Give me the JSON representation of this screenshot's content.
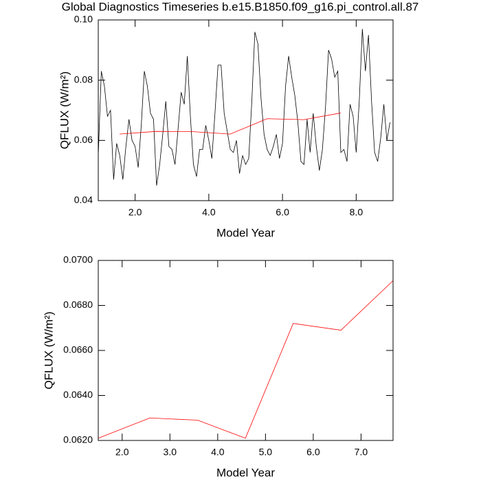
{
  "chart_data": [
    {
      "type": "line",
      "title": "Global Diagnostics Timeseries b.e15.B1850.f09_g16.pi_control.all.87",
      "x_label": "Model Year",
      "y_label": "QFLUX (W/m²)",
      "xlim": [
        1.0,
        9.0
      ],
      "xticks": [
        {
          "value": 2,
          "label": "2.0"
        },
        {
          "value": 4,
          "label": "4.0"
        },
        {
          "value": 6,
          "label": "6.0"
        },
        {
          "value": 8,
          "label": "8.0"
        }
      ],
      "ylim": [
        0.04,
        0.1
      ],
      "yticks": [
        0.04,
        0.06,
        0.08,
        {
          "value": 0.1,
          "label": "0.10"
        }
      ],
      "series": [
        {
          "color": "#000000",
          "x": [
            1.0,
            1.083,
            1.167,
            1.25,
            1.333,
            1.417,
            1.5,
            1.583,
            1.667,
            1.75,
            1.833,
            1.917,
            2.0,
            2.083,
            2.167,
            2.25,
            2.333,
            2.417,
            2.5,
            2.583,
            2.667,
            2.75,
            2.833,
            2.917,
            3.0,
            3.083,
            3.167,
            3.25,
            3.333,
            3.417,
            3.5,
            3.583,
            3.667,
            3.75,
            3.833,
            3.917,
            4.0,
            4.083,
            4.167,
            4.25,
            4.333,
            4.417,
            4.5,
            4.583,
            4.667,
            4.75,
            4.833,
            4.917,
            5.0,
            5.083,
            5.167,
            5.25,
            5.333,
            5.417,
            5.5,
            5.583,
            5.667,
            5.75,
            5.833,
            5.917,
            6.0,
            6.083,
            6.167,
            6.25,
            6.333,
            6.417,
            6.5,
            6.583,
            6.667,
            6.75,
            6.833,
            6.917,
            7.0,
            7.083,
            7.167,
            7.25,
            7.333,
            7.417,
            7.5,
            7.583,
            7.667,
            7.75,
            7.833,
            7.917,
            8.0,
            8.083,
            8.167,
            8.25,
            8.333,
            8.417,
            8.5,
            8.583,
            8.667,
            8.75,
            8.833,
            8.917
          ],
          "values": [
            0.055,
            0.083,
            0.078,
            0.068,
            0.07,
            0.047,
            0.059,
            0.055,
            0.047,
            0.058,
            0.067,
            0.06,
            0.058,
            0.051,
            0.065,
            0.083,
            0.078,
            0.069,
            0.067,
            0.045,
            0.052,
            0.062,
            0.073,
            0.058,
            0.057,
            0.052,
            0.064,
            0.076,
            0.072,
            0.088,
            0.068,
            0.052,
            0.048,
            0.057,
            0.057,
            0.065,
            0.06,
            0.054,
            0.069,
            0.085,
            0.085,
            0.069,
            0.063,
            0.057,
            0.056,
            0.06,
            0.049,
            0.055,
            0.052,
            0.054,
            0.073,
            0.096,
            0.092,
            0.074,
            0.062,
            0.057,
            0.055,
            0.058,
            0.062,
            0.054,
            0.059,
            0.078,
            0.088,
            0.081,
            0.075,
            0.066,
            0.053,
            0.052,
            0.067,
            0.056,
            0.069,
            0.058,
            0.05,
            0.057,
            0.071,
            0.09,
            0.087,
            0.081,
            0.083,
            0.056,
            0.057,
            0.053,
            0.072,
            0.068,
            0.056,
            0.073,
            0.097,
            0.083,
            0.095,
            0.073,
            0.056,
            0.053,
            0.061,
            0.072,
            0.06,
            0.066
          ]
        },
        {
          "color": "#ff0000",
          "x": [
            1.58,
            2.58,
            3.58,
            4.58,
            5.58,
            6.58,
            7.58
          ],
          "values": [
            0.0621,
            0.063,
            0.0629,
            0.0621,
            0.0672,
            0.0669,
            0.0691
          ]
        }
      ]
    },
    {
      "type": "line",
      "x_label": "Model Year",
      "y_label": "QFLUX (W/m²)",
      "xlim": [
        1.5,
        7.67
      ],
      "xticks": [
        {
          "value": 2,
          "label": "2.0"
        },
        {
          "value": 3,
          "label": "3.0"
        },
        {
          "value": 4,
          "label": "4.0"
        },
        {
          "value": 5,
          "label": "5.0"
        },
        {
          "value": 6,
          "label": "6.0"
        },
        {
          "value": 7,
          "label": "7.0"
        }
      ],
      "ylim": [
        0.062,
        0.07
      ],
      "yticks": [
        {
          "value": 0.062,
          "label": "0.0620"
        },
        {
          "value": 0.064,
          "label": "0.0640"
        },
        {
          "value": 0.066,
          "label": "0.0660"
        },
        {
          "value": 0.068,
          "label": "0.0680"
        },
        {
          "value": 0.07,
          "label": "0.0700"
        }
      ],
      "series": [
        {
          "color": "#ff0000",
          "x": [
            1.5,
            2.58,
            3.58,
            4.58,
            5.58,
            6.58,
            7.67
          ],
          "values": [
            0.0621,
            0.063,
            0.0629,
            0.0621,
            0.0672,
            0.0669,
            0.0691
          ]
        }
      ]
    }
  ]
}
